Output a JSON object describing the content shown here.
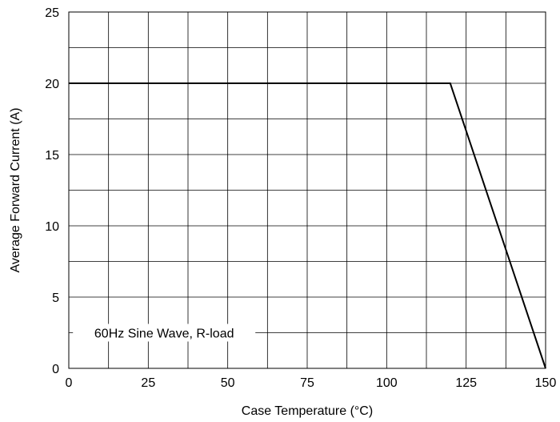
{
  "chart_data": {
    "type": "line",
    "title": "",
    "xlabel": "Case Temperature (°C)",
    "ylabel": "Average Forward Current (A)",
    "xlim": [
      0,
      150
    ],
    "ylim": [
      0,
      25
    ],
    "x_ticks": [
      0,
      25,
      50,
      75,
      100,
      125,
      150
    ],
    "x_tick_labels": [
      "0",
      "25",
      "50",
      "75",
      "100",
      "125",
      "150"
    ],
    "y_ticks": [
      0,
      5,
      10,
      15,
      20,
      25
    ],
    "y_tick_labels": [
      "0",
      "5",
      "10",
      "15",
      "20",
      "25"
    ],
    "x_grid_step": 12.5,
    "y_grid_step": 2.5,
    "grid": true,
    "annotation": "60Hz Sine Wave, R-load",
    "series": [
      {
        "x": [
          0,
          120,
          150
        ],
        "y": [
          20,
          20,
          0
        ]
      }
    ]
  }
}
